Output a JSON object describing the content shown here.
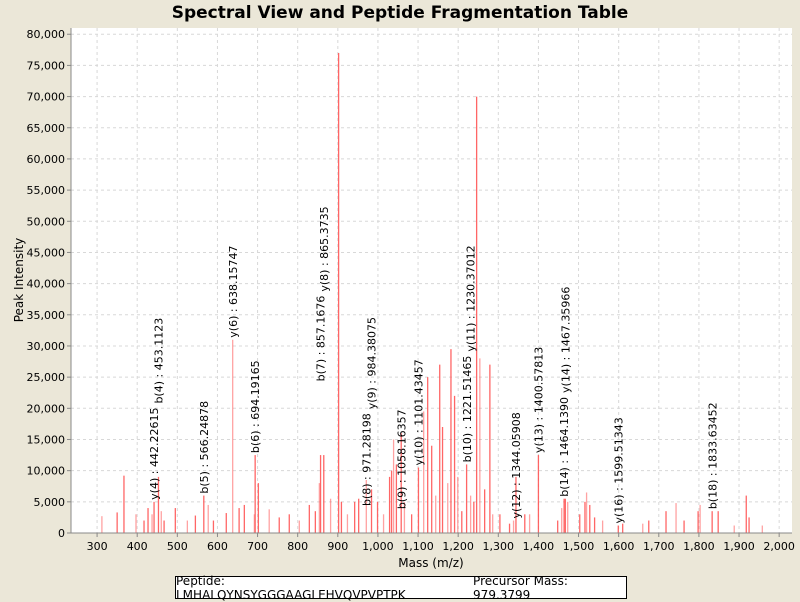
{
  "chart_data": {
    "type": "bar",
    "title": "Spectral View and Peptide Fragmentation Table",
    "xlabel": "Mass (m/z)",
    "ylabel": "Peak Intensity",
    "xlim": [
      235,
      2032
    ],
    "ylim": [
      0,
      81000
    ],
    "grid": true,
    "x_ticks": [
      300,
      400,
      500,
      600,
      700,
      800,
      900,
      1000,
      1100,
      1200,
      1300,
      1400,
      1500,
      1600,
      1700,
      1800,
      1900,
      2000
    ],
    "x_tick_labels": [
      "300",
      "400",
      "500",
      "600",
      "700",
      "800",
      "900",
      "1,000",
      "1,100",
      "1,200",
      "1,300",
      "1,400",
      "1,500",
      "1,600",
      "1,700",
      "1,800",
      "1,900",
      "2,000"
    ],
    "y_ticks": [
      0,
      5000,
      10000,
      15000,
      20000,
      25000,
      30000,
      35000,
      40000,
      45000,
      50000,
      55000,
      60000,
      65000,
      70000,
      75000,
      80000
    ],
    "y_tick_labels": [
      "0",
      "5,000",
      "10,000",
      "15,000",
      "20,000",
      "25,000",
      "30,000",
      "35,000",
      "40,000",
      "45,000",
      "50,000",
      "55,000",
      "60,000",
      "65,000",
      "70,000",
      "75,000",
      "80,000"
    ],
    "series_color": "#ff5555",
    "peaks": [
      [
        312,
        2700
      ],
      [
        350,
        3300
      ],
      [
        367,
        9200
      ],
      [
        397,
        3000
      ],
      [
        417,
        2000
      ],
      [
        427,
        4000
      ],
      [
        437,
        3000
      ],
      [
        442,
        5000
      ],
      [
        453,
        9000
      ],
      [
        460,
        3500
      ],
      [
        467,
        2000
      ],
      [
        495,
        4000
      ],
      [
        525,
        2000
      ],
      [
        545,
        2800
      ],
      [
        566,
        6000
      ],
      [
        577,
        4500
      ],
      [
        590,
        2000
      ],
      [
        622,
        3200
      ],
      [
        638,
        31000
      ],
      [
        654,
        4000
      ],
      [
        667,
        4500
      ],
      [
        692,
        3000
      ],
      [
        694,
        12500
      ],
      [
        702,
        8000
      ],
      [
        729,
        3800
      ],
      [
        754,
        2500
      ],
      [
        779,
        3000
      ],
      [
        804,
        2000
      ],
      [
        829,
        4500
      ],
      [
        844,
        3500
      ],
      [
        854,
        8000
      ],
      [
        857,
        12500
      ],
      [
        865,
        12500
      ],
      [
        882,
        5500
      ],
      [
        902,
        77000
      ],
      [
        909,
        5000
      ],
      [
        924,
        3000
      ],
      [
        942,
        5000
      ],
      [
        952,
        5500
      ],
      [
        971,
        8500
      ],
      [
        984,
        7000
      ],
      [
        999,
        5000
      ],
      [
        1014,
        3000
      ],
      [
        1029,
        9000
      ],
      [
        1034,
        10000
      ],
      [
        1039,
        15000
      ],
      [
        1046,
        11000
      ],
      [
        1058,
        16000
      ],
      [
        1066,
        5000
      ],
      [
        1084,
        3000
      ],
      [
        1101,
        10500
      ],
      [
        1114,
        19500
      ],
      [
        1124,
        25000
      ],
      [
        1134,
        14000
      ],
      [
        1144,
        6000
      ],
      [
        1154,
        27000
      ],
      [
        1161,
        17000
      ],
      [
        1174,
        8000
      ],
      [
        1182,
        29500
      ],
      [
        1191,
        22000
      ],
      [
        1199,
        9000
      ],
      [
        1209,
        3500
      ],
      [
        1221,
        11000
      ],
      [
        1231,
        6000
      ],
      [
        1239,
        5000
      ],
      [
        1246,
        70000
      ],
      [
        1254,
        28000
      ],
      [
        1266,
        7000
      ],
      [
        1279,
        27000
      ],
      [
        1286,
        3000
      ],
      [
        1304,
        3000
      ],
      [
        1328,
        1500
      ],
      [
        1338,
        2000
      ],
      [
        1344,
        9000
      ],
      [
        1366,
        3000
      ],
      [
        1378,
        3000
      ],
      [
        1400,
        12500
      ],
      [
        1448,
        2000
      ],
      [
        1458,
        4000
      ],
      [
        1464,
        5500
      ],
      [
        1467,
        5500
      ],
      [
        1473,
        5000
      ],
      [
        1503,
        3000
      ],
      [
        1516,
        5000
      ],
      [
        1520,
        6500
      ],
      [
        1528,
        4500
      ],
      [
        1540,
        2500
      ],
      [
        1560,
        2000
      ],
      [
        1599,
        1200
      ],
      [
        1610,
        1500
      ],
      [
        1660,
        1500
      ],
      [
        1675,
        2000
      ],
      [
        1718,
        3500
      ],
      [
        1743,
        4800
      ],
      [
        1763,
        2000
      ],
      [
        1798,
        3500
      ],
      [
        1803,
        4500
      ],
      [
        1833,
        3500
      ],
      [
        1848,
        3500
      ],
      [
        1888,
        1200
      ],
      [
        1918,
        6000
      ],
      [
        1925,
        2500
      ],
      [
        1958,
        1200
      ]
    ],
    "annotations": [
      {
        "mz": 442.2,
        "intensity": 5000,
        "label": "y(4) : 442.22615"
      },
      {
        "mz": 453.1,
        "intensity": 9000,
        "label": "b(4) : 453.1123"
      },
      {
        "mz": 566.2,
        "intensity": 6000,
        "label": "b(5) : 566.24878"
      },
      {
        "mz": 638.2,
        "intensity": 31000,
        "label": "y(6) : 638.15747"
      },
      {
        "mz": 694.2,
        "intensity": 12500,
        "label": "b(6) : 694.19165"
      },
      {
        "mz": 857.2,
        "intensity": 24000,
        "label": "b(7) : 857.1676"
      },
      {
        "mz": 865.4,
        "intensity": 12500,
        "label": "y(8) : 865.3735"
      },
      {
        "mz": 971.3,
        "intensity": 4000,
        "label": "b(8) : 971.28198"
      },
      {
        "mz": 984.4,
        "intensity": 7000,
        "label": "y(9) : 984.38075"
      },
      {
        "mz": 1058.2,
        "intensity": 3500,
        "label": "b(9) : 1058.16357"
      },
      {
        "mz": 1101.4,
        "intensity": 10500,
        "label": "y(10) : 1101.43457"
      },
      {
        "mz": 1221.5,
        "intensity": 11000,
        "label": "b(10) : 1221.51465"
      },
      {
        "mz": 1230.4,
        "intensity": 2500,
        "label": "y(11) : 1230.37012"
      },
      {
        "mz": 1344.1,
        "intensity": 2000,
        "label": "y(12) : 1344.05908"
      },
      {
        "mz": 1400.6,
        "intensity": 12500,
        "label": "y(13) : 1400.57813"
      },
      {
        "mz": 1464.1,
        "intensity": 5500,
        "label": "b(14) : 1464.1390"
      },
      {
        "mz": 1467.4,
        "intensity": 5500,
        "label": "y(14) : 1467.35966"
      },
      {
        "mz": 1599.5,
        "intensity": 1200,
        "label": "y(16) : 1599.51343"
      },
      {
        "mz": 1833.6,
        "intensity": 3500,
        "label": "b(18) : 1833.63452"
      }
    ]
  },
  "legend": {
    "peptide": "Peptide: LMHALQYNSYGGGAAGLEHVQVPVPTPK",
    "precursor": "Precursor Mass: 979.3799"
  }
}
